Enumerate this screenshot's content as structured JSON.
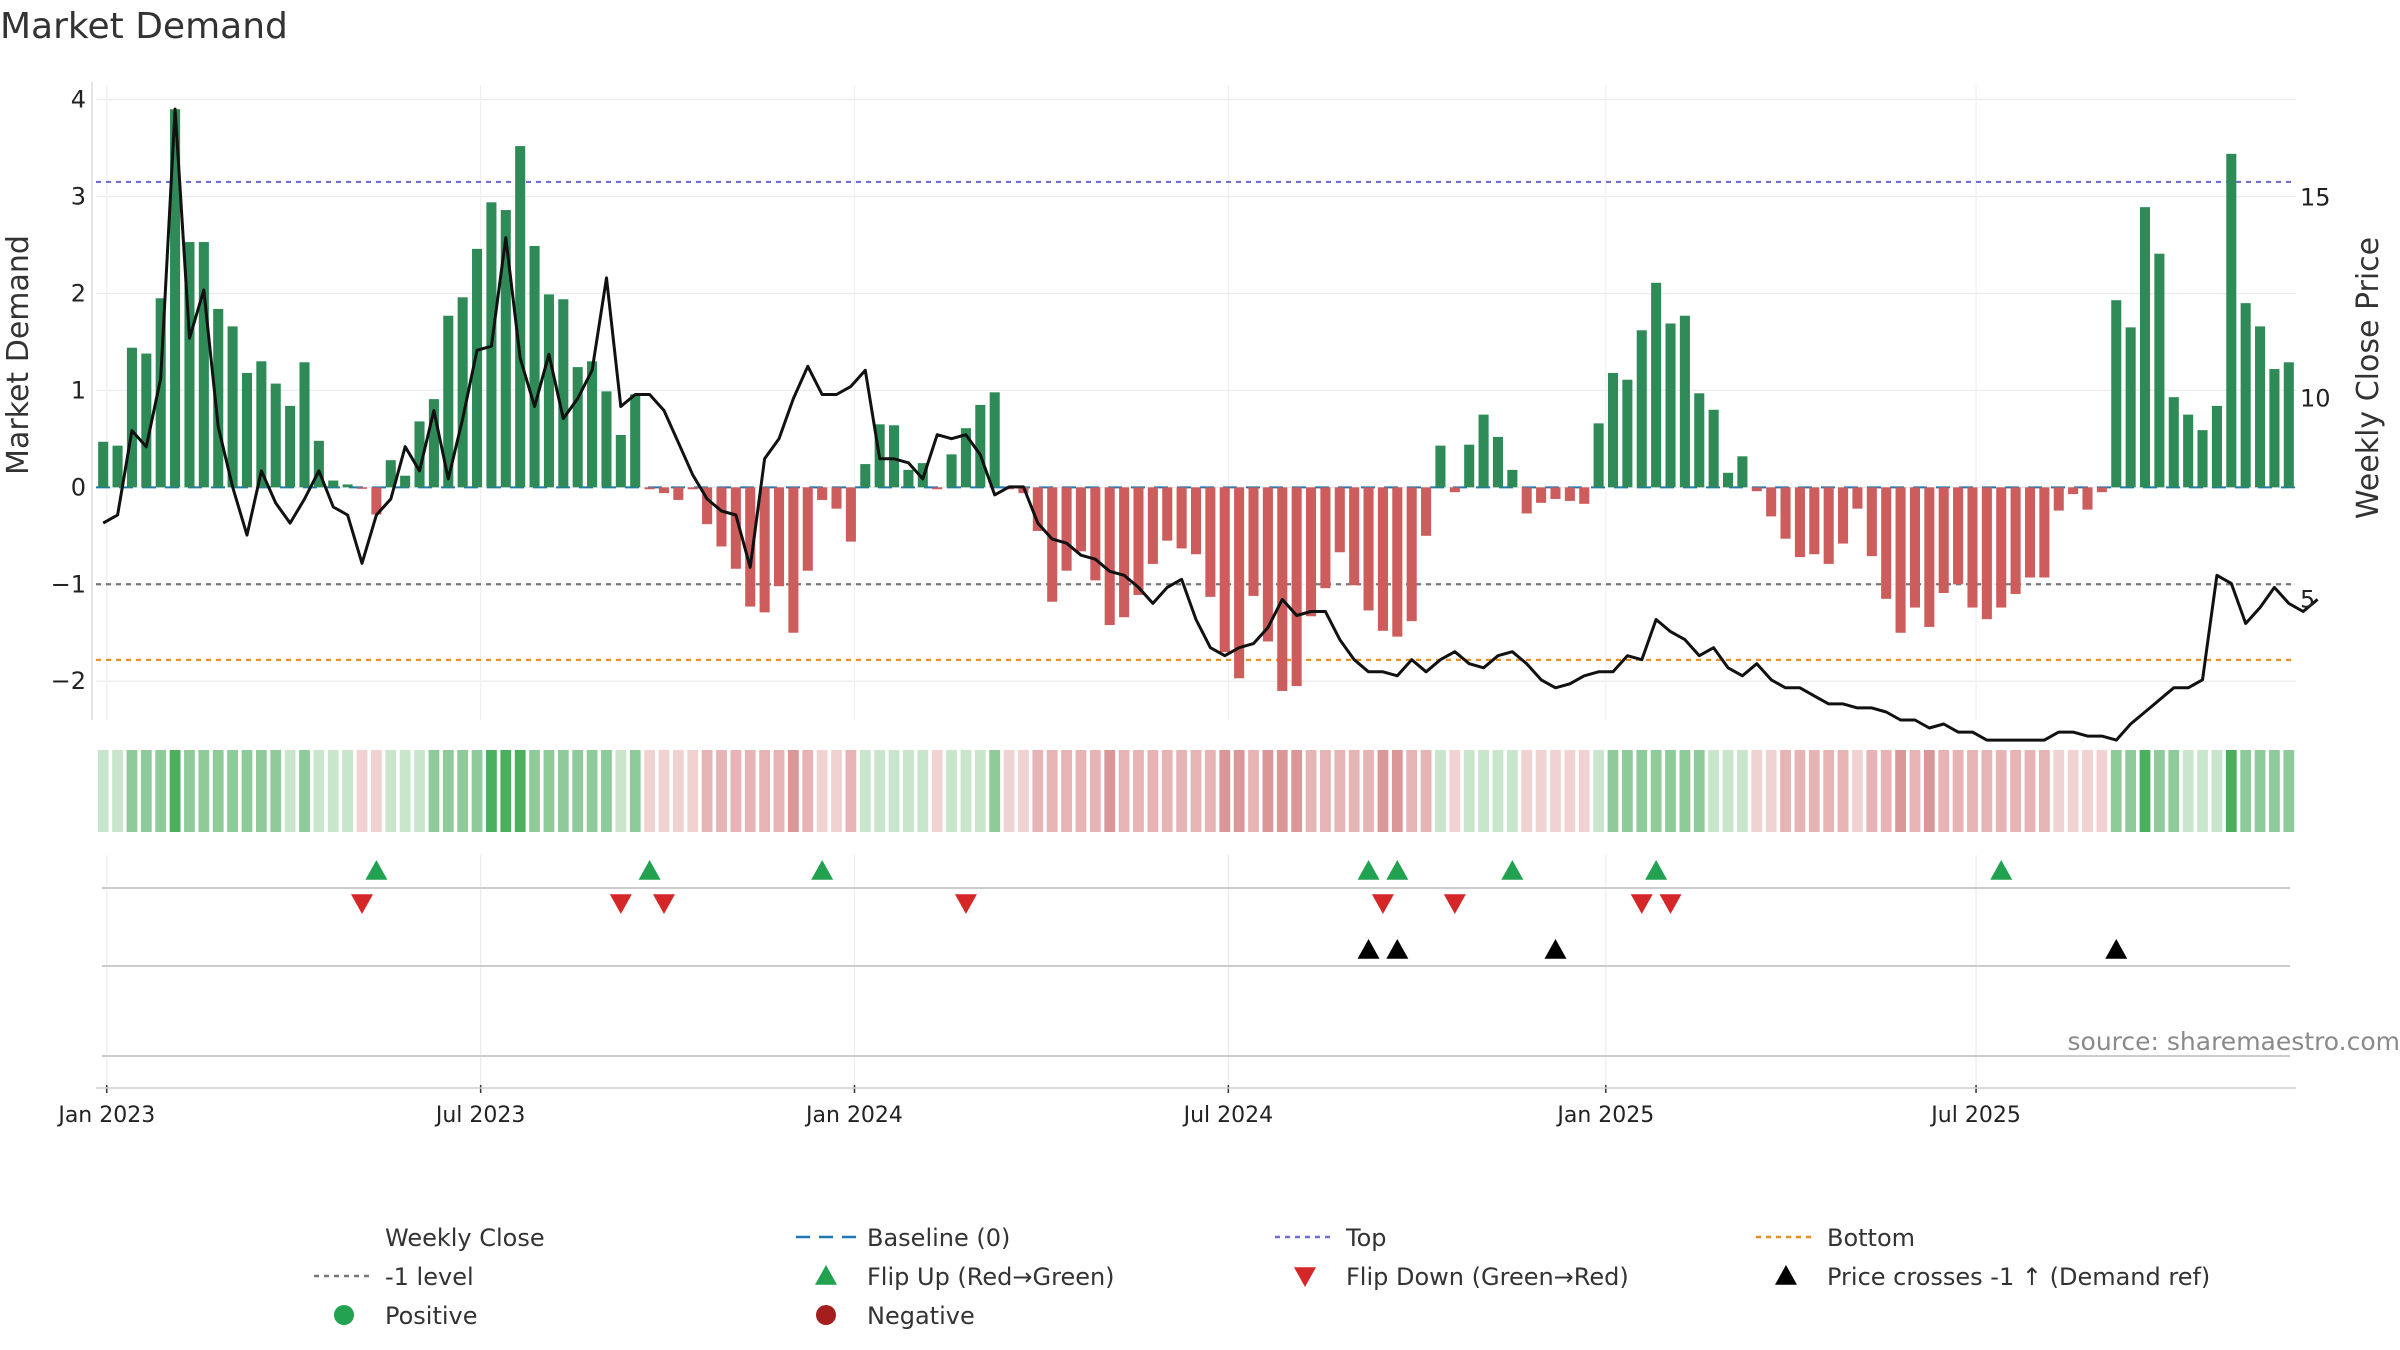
{
  "chart_data": {
    "type": "bar+line",
    "title": "Market Demand",
    "ylabel_left": "Market Demand",
    "ylabel_right": "Weekly Close Price",
    "ylim_left": [
      -2.4,
      4.15
    ],
    "ylim_right": [
      2.0,
      17.8
    ],
    "yticks_left": [
      "4",
      "3",
      "2",
      "1",
      "0",
      "−1",
      "−2"
    ],
    "yticks_right": [
      "15",
      "10",
      "5"
    ],
    "xticks": [
      "Jan 2023",
      "Jul 2023",
      "Jan 2024",
      "Jul 2024",
      "Jan 2025",
      "Jul 2025"
    ],
    "reference_lines": {
      "top": 3.15,
      "bottom": -1.78,
      "minus_one": -1.0,
      "baseline": 0.0
    },
    "demand": [
      0.47,
      0.43,
      1.44,
      1.38,
      1.95,
      3.9,
      2.53,
      2.53,
      1.84,
      1.66,
      1.18,
      1.3,
      1.07,
      0.84,
      1.29,
      0.48,
      0.07,
      0.03,
      -0.01,
      -0.28,
      0.28,
      0.12,
      0.68,
      0.91,
      1.77,
      1.96,
      2.46,
      2.94,
      2.86,
      3.52,
      2.49,
      1.99,
      1.94,
      1.24,
      1.3,
      0.99,
      0.54,
      0.96,
      -0.02,
      -0.06,
      -0.13,
      -0.02,
      -0.38,
      -0.61,
      -0.84,
      -1.23,
      -1.29,
      -1.02,
      -1.5,
      -0.86,
      -0.13,
      -0.22,
      -0.56,
      0.24,
      0.65,
      0.64,
      0.18,
      0.25,
      -0.02,
      0.34,
      0.61,
      0.85,
      0.98,
      -0.02,
      -0.06,
      -0.45,
      -1.18,
      -0.86,
      -0.66,
      -0.96,
      -1.42,
      -1.34,
      -1.11,
      -0.79,
      -0.55,
      -0.63,
      -0.69,
      -1.13,
      -1.7,
      -1.97,
      -1.12,
      -1.59,
      -2.1,
      -2.05,
      -1.33,
      -1.04,
      -0.67,
      -1.01,
      -1.27,
      -1.48,
      -1.54,
      -1.38,
      -0.5,
      0.43,
      -0.05,
      0.44,
      0.75,
      0.52,
      0.18,
      -0.27,
      -0.16,
      -0.12,
      -0.14,
      -0.17,
      0.66,
      1.18,
      1.11,
      1.62,
      2.11,
      1.69,
      1.77,
      0.97,
      0.8,
      0.15,
      0.32,
      -0.04,
      -0.3,
      -0.53,
      -0.72,
      -0.69,
      -0.79,
      -0.58,
      -0.22,
      -0.71,
      -1.15,
      -1.5,
      -1.24,
      -1.44,
      -1.09,
      -1.0,
      -1.24,
      -1.36,
      -1.24,
      -1.1,
      -0.93,
      -0.93,
      -0.24,
      -0.07,
      -0.23,
      -0.05,
      1.93,
      1.65,
      2.89,
      2.41,
      0.93,
      0.75,
      0.59,
      0.84,
      3.44,
      1.9,
      1.66,
      1.22,
      1.29
    ],
    "weekly_close": [
      6.9,
      7.1,
      9.2,
      8.8,
      10.5,
      17.2,
      11.5,
      12.7,
      9.3,
      7.8,
      6.6,
      8.2,
      7.4,
      6.9,
      7.5,
      8.2,
      7.3,
      7.1,
      5.9,
      7.1,
      7.5,
      8.8,
      8.2,
      9.7,
      8.0,
      9.5,
      11.2,
      11.3,
      14.0,
      11.0,
      9.8,
      11.1,
      9.5,
      10.0,
      10.7,
      13.0,
      9.8,
      10.1,
      10.1,
      9.7,
      8.9,
      8.1,
      7.5,
      7.2,
      7.1,
      5.8,
      8.5,
      9.0,
      10.0,
      10.8,
      10.1,
      10.1,
      10.3,
      10.7,
      8.5,
      8.5,
      8.4,
      8.0,
      9.1,
      9.0,
      9.1,
      8.6,
      7.6,
      7.8,
      7.8,
      6.9,
      6.5,
      6.4,
      6.1,
      6.0,
      5.7,
      5.6,
      5.3,
      4.9,
      5.3,
      5.5,
      4.5,
      3.8,
      3.6,
      3.8,
      3.9,
      4.3,
      5.0,
      4.6,
      4.7,
      4.7,
      4.0,
      3.5,
      3.2,
      3.2,
      3.1,
      3.5,
      3.2,
      3.5,
      3.7,
      3.4,
      3.3,
      3.6,
      3.7,
      3.4,
      3.0,
      2.8,
      2.9,
      3.1,
      3.2,
      3.2,
      3.6,
      3.5,
      4.5,
      4.2,
      4.0,
      3.6,
      3.8,
      3.3,
      3.1,
      3.4,
      3.0,
      2.8,
      2.8,
      2.6,
      2.4,
      2.4,
      2.3,
      2.3,
      2.2,
      2.0,
      2.0,
      1.8,
      1.9,
      1.7,
      1.7,
      1.5,
      1.5,
      1.5,
      1.5,
      1.5,
      1.7,
      1.7,
      1.6,
      1.6,
      1.5,
      1.9,
      2.2,
      2.5,
      2.8,
      2.8,
      3.0,
      5.6,
      5.4,
      4.4,
      4.8,
      5.3,
      4.9,
      4.7,
      5.0
    ],
    "flip_up_weeks": [
      19,
      38,
      50,
      88,
      90,
      98,
      108,
      132
    ],
    "flip_down_weeks": [
      18,
      36,
      39,
      60,
      89,
      94,
      107,
      109
    ],
    "price_cross_weeks": [
      88,
      90,
      101,
      140
    ],
    "strength_bar_colors": {
      "strong_positive": "#4caf5e",
      "positive": "#8fcb9a",
      "weak_positive": "#c9e6cd",
      "weak_negative": "#f1d2d2",
      "negative": "#e6b4b4",
      "strong_negative": "#d99797"
    },
    "colors": {
      "positive_bar": "#2e8b57",
      "negative_bar": "#cd5c5c",
      "line": "#111111",
      "top": "#6f6fd6",
      "bottom": "#e88f25",
      "minus_one": "#777777",
      "baseline": "#1f77b4",
      "flip_up": "#22a150",
      "flip_down": "#d62728",
      "cross": "#000000",
      "dot_positive": "#22a150",
      "dot_negative": "#a51e1e"
    },
    "legend": [
      {
        "key": "weekly_close",
        "label": "Weekly Close",
        "marker": "line"
      },
      {
        "key": "baseline",
        "label": "Baseline (0)",
        "marker": "dash"
      },
      {
        "key": "top",
        "label": "Top",
        "marker": "dot-line"
      },
      {
        "key": "bottom",
        "label": "Bottom",
        "marker": "dot-line"
      },
      {
        "key": "minus_one",
        "label": "-1 level",
        "marker": "dot-line"
      },
      {
        "key": "flip_up",
        "label": "Flip Up (Red→Green)",
        "marker": "tri-up"
      },
      {
        "key": "flip_down",
        "label": "Flip Down (Green→Red)",
        "marker": "tri-down"
      },
      {
        "key": "cross",
        "label": "Price crosses -1 ↑ (Demand ref)",
        "marker": "tri-up"
      },
      {
        "key": "dot_positive",
        "label": "Positive",
        "marker": "dot"
      },
      {
        "key": "dot_negative",
        "label": "Negative",
        "marker": "dot"
      }
    ],
    "source": "source: sharemaestro.com"
  }
}
